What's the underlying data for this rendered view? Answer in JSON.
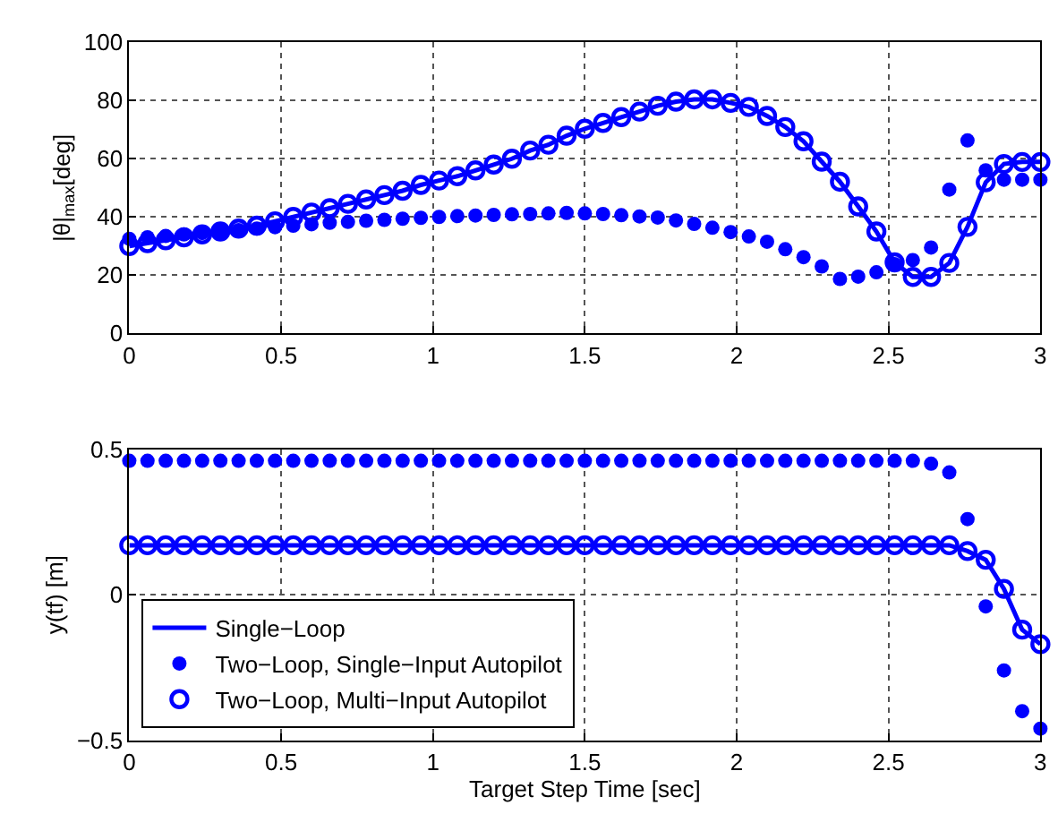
{
  "chart_data": [
    {
      "type": "scatter",
      "ylabel": "|θ|$_{max}$[deg]",
      "xlim": [
        0,
        3
      ],
      "xticks": [
        0,
        0.5,
        1,
        1.5,
        2,
        2.5,
        3
      ],
      "ylim": [
        0,
        100
      ],
      "yticks": [
        0,
        20,
        40,
        60,
        80,
        100
      ],
      "grid": true,
      "legend": false,
      "x": [
        0,
        0.06,
        0.12,
        0.18,
        0.24,
        0.3,
        0.36,
        0.42,
        0.48,
        0.54,
        0.6,
        0.66,
        0.72,
        0.78,
        0.84,
        0.9,
        0.96,
        1.02,
        1.08,
        1.14,
        1.2,
        1.26,
        1.32,
        1.38,
        1.44,
        1.5,
        1.56,
        1.62,
        1.68,
        1.74,
        1.8,
        1.86,
        1.92,
        1.98,
        2.04,
        2.1,
        2.16,
        2.22,
        2.28,
        2.34,
        2.4,
        2.46,
        2.52,
        2.58,
        2.64,
        2.7,
        2.76,
        2.82,
        2.88,
        2.94,
        3.0
      ],
      "series": [
        {
          "type": "line",
          "marker": "none",
          "color": "#0000ff",
          "values": [
            30,
            31,
            32,
            33,
            34,
            35,
            36,
            37,
            38.5,
            40,
            41.5,
            43,
            44.5,
            46,
            47.5,
            49,
            51,
            52.5,
            54,
            56,
            58,
            60,
            62.8,
            64.8,
            67.9,
            70.3,
            72.3,
            74.3,
            76.2,
            78.2,
            79.6,
            80.4,
            80.4,
            79.2,
            77.8,
            74.7,
            70.9,
            66,
            59,
            52.1,
            43.6,
            35,
            24.4,
            19.4,
            19.4,
            24.2,
            36.6,
            51.9,
            58.2,
            58.9,
            58.9
          ]
        },
        {
          "marker": "circle",
          "color": "#0000ff",
          "values": [
            32.5,
            33,
            33.5,
            34,
            34.5,
            35,
            35.5,
            36,
            36.5,
            37,
            37.5,
            38,
            38.3,
            38.7,
            39,
            39.4,
            39.7,
            40,
            40.3,
            40.5,
            40.7,
            40.9,
            41,
            41.2,
            41.4,
            41.2,
            41,
            40.6,
            40.2,
            39.8,
            38.8,
            37.6,
            36.3,
            34.8,
            33.3,
            31.5,
            28.9,
            26.2,
            23,
            18.7,
            19.5,
            21,
            23.8,
            25.2,
            29.5,
            49.4,
            66.3,
            56,
            52.8,
            52.8,
            52.8
          ]
        },
        {
          "marker": "circle-open",
          "color": "#0000ff",
          "values": [
            30,
            31,
            32,
            33,
            34,
            35,
            36,
            37,
            38.5,
            40,
            41.5,
            43,
            44.5,
            46,
            47.5,
            49,
            51,
            52.5,
            54,
            56,
            58,
            60,
            62.8,
            64.8,
            67.9,
            70.3,
            72.3,
            74.3,
            76.2,
            78.2,
            79.6,
            80.4,
            80.4,
            79.2,
            77.8,
            74.7,
            70.9,
            66,
            59,
            52.1,
            43.6,
            35,
            24.4,
            19.4,
            19.4,
            24.2,
            36.6,
            51.9,
            58.2,
            58.9,
            58.9
          ]
        }
      ]
    },
    {
      "type": "scatter",
      "xlabel": "Target Step Time [sec]",
      "ylabel": "y(tf) [m]",
      "xlim": [
        0,
        3
      ],
      "xticks": [
        0,
        0.5,
        1,
        1.5,
        2,
        2.5,
        3
      ],
      "ylim": [
        -0.5,
        0.5
      ],
      "yticks": [
        {
          "value": -0.5,
          "label": "−0.5"
        },
        0,
        0.5
      ],
      "grid": true,
      "legend": "bottom left",
      "x": [
        0,
        0.06,
        0.12,
        0.18,
        0.24,
        0.3,
        0.36,
        0.42,
        0.48,
        0.54,
        0.6,
        0.66,
        0.72,
        0.78,
        0.84,
        0.9,
        0.96,
        1.02,
        1.08,
        1.14,
        1.2,
        1.26,
        1.32,
        1.38,
        1.44,
        1.5,
        1.56,
        1.62,
        1.68,
        1.74,
        1.8,
        1.86,
        1.92,
        1.98,
        2.04,
        2.1,
        2.16,
        2.22,
        2.28,
        2.34,
        2.4,
        2.46,
        2.52,
        2.58,
        2.64,
        2.7,
        2.76,
        2.82,
        2.88,
        2.94,
        3.0
      ],
      "series": [
        {
          "name": "Single−Loop",
          "type": "line",
          "marker": "none",
          "color": "#0000ff",
          "values": [
            0.17,
            0.17,
            0.17,
            0.17,
            0.17,
            0.17,
            0.17,
            0.17,
            0.17,
            0.17,
            0.17,
            0.17,
            0.17,
            0.17,
            0.17,
            0.17,
            0.17,
            0.17,
            0.17,
            0.17,
            0.17,
            0.17,
            0.17,
            0.17,
            0.17,
            0.17,
            0.17,
            0.17,
            0.17,
            0.17,
            0.17,
            0.17,
            0.17,
            0.17,
            0.17,
            0.17,
            0.17,
            0.17,
            0.17,
            0.17,
            0.17,
            0.17,
            0.17,
            0.17,
            0.17,
            0.17,
            0.15,
            0.12,
            0.02,
            -0.12,
            -0.17
          ]
        },
        {
          "name": "Two−Loop, Single−Input Autopilot",
          "marker": "circle",
          "color": "#0000ff",
          "values": [
            0.46,
            0.46,
            0.46,
            0.46,
            0.46,
            0.46,
            0.46,
            0.46,
            0.46,
            0.46,
            0.46,
            0.46,
            0.46,
            0.46,
            0.46,
            0.46,
            0.46,
            0.46,
            0.46,
            0.46,
            0.46,
            0.46,
            0.46,
            0.46,
            0.46,
            0.46,
            0.46,
            0.46,
            0.46,
            0.46,
            0.46,
            0.46,
            0.46,
            0.46,
            0.46,
            0.46,
            0.46,
            0.46,
            0.46,
            0.46,
            0.46,
            0.46,
            0.46,
            0.46,
            0.45,
            0.42,
            0.26,
            -0.04,
            -0.26,
            -0.4,
            -0.46
          ]
        },
        {
          "name": "Two−Loop, Multi−Input Autopilot",
          "marker": "circle-open",
          "color": "#0000ff",
          "values": [
            0.17,
            0.17,
            0.17,
            0.17,
            0.17,
            0.17,
            0.17,
            0.17,
            0.17,
            0.17,
            0.17,
            0.17,
            0.17,
            0.17,
            0.17,
            0.17,
            0.17,
            0.17,
            0.17,
            0.17,
            0.17,
            0.17,
            0.17,
            0.17,
            0.17,
            0.17,
            0.17,
            0.17,
            0.17,
            0.17,
            0.17,
            0.17,
            0.17,
            0.17,
            0.17,
            0.17,
            0.17,
            0.17,
            0.17,
            0.17,
            0.17,
            0.17,
            0.17,
            0.17,
            0.17,
            0.17,
            0.15,
            0.12,
            0.02,
            -0.12,
            -0.17
          ]
        }
      ]
    }
  ]
}
